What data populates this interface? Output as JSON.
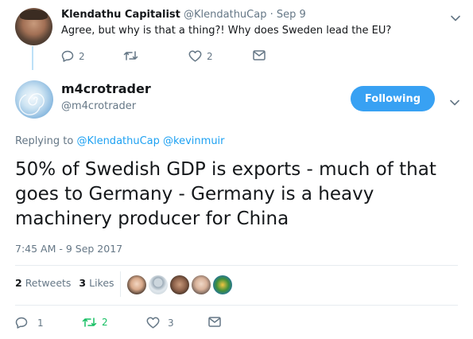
{
  "reply_tweet": {
    "name": "Klendathu Capitalist",
    "handle": "@KlendathuCap",
    "separator": "·",
    "date": "Sep 9",
    "text": "Agree, but why is that a thing?! Why does Sweden lead the EU?",
    "reply_count": "2",
    "retweet_count": "",
    "like_count": "2"
  },
  "main_tweet": {
    "name": "m4crotrader",
    "handle": "@m4crotrader",
    "follow_label": "Following",
    "replying_prefix": "Replying to",
    "replying_to": [
      "@KlendathuCap",
      "@kevinmuir"
    ],
    "text": "50% of Swedish GDP is exports - much of that goes to Germany - Germany is a heavy machinery producer for China",
    "timestamp": "7:45 AM - 9 Sep 2017",
    "retweets_count": "2",
    "retweets_label": "Retweets",
    "likes_count": "3",
    "likes_label": "Likes",
    "reply_count": "1",
    "retweet_count": "2",
    "like_count": "3"
  },
  "icons": [
    "reply-icon",
    "retweet-icon",
    "like-icon",
    "message-icon",
    "chevron-down-icon"
  ],
  "colors": {
    "accent": "#1da1f2",
    "follow_button": "#38a1f3",
    "retweet_active": "#17bf63",
    "muted": "#657786"
  }
}
